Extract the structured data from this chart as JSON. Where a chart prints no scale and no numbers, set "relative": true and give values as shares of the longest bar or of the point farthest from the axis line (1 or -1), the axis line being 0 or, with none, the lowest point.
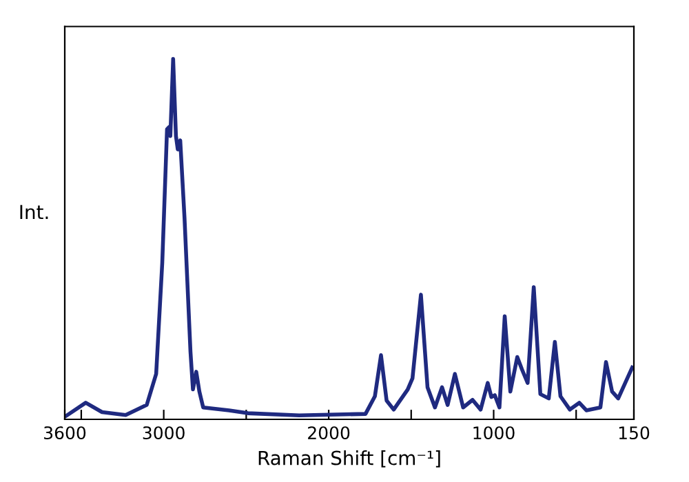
{
  "chart_data": {
    "type": "line",
    "relative": true,
    "xlabel": "Raman Shift [cm⁻¹]",
    "ylabel": "Int.",
    "xlim": [
      3600,
      150
    ],
    "xticks": [
      3600,
      {
        "value": 3500,
        "label": null
      },
      3000,
      {
        "value": 2500,
        "label": null
      },
      2000,
      {
        "value": 1500,
        "label": null
      },
      1000,
      {
        "value": 500,
        "label": null
      },
      150
    ],
    "grid": false,
    "marker": "none",
    "line_style": "solid",
    "series": [
      {
        "color": "#1f2a80",
        "x": [
          3590,
          3473,
          3374,
          3231,
          3103,
          3046,
          3009,
          2980,
          2968,
          2960,
          2943,
          2926,
          2915,
          2900,
          2874,
          2838,
          2823,
          2803,
          2784,
          2761,
          2604,
          2490,
          2179,
          1777,
          1720,
          1683,
          1649,
          1606,
          1521,
          1492,
          1441,
          1401,
          1356,
          1313,
          1279,
          1235,
          1185,
          1128,
          1079,
          1036,
          1014,
          993,
          965,
          933,
          899,
          857,
          828,
          794,
          757,
          717,
          666,
          629,
          595,
          538,
          481,
          438,
          353,
          319,
          282,
          245,
          160
        ],
        "values": [
          0.01,
          0.046,
          0.02,
          0.012,
          0.04,
          0.126,
          0.434,
          0.805,
          0.811,
          0.786,
          1.0,
          0.786,
          0.749,
          0.774,
          0.558,
          0.188,
          0.083,
          0.132,
          0.077,
          0.033,
          0.025,
          0.017,
          0.011,
          0.015,
          0.064,
          0.178,
          0.052,
          0.027,
          0.083,
          0.114,
          0.346,
          0.089,
          0.033,
          0.089,
          0.04,
          0.126,
          0.033,
          0.054,
          0.027,
          0.101,
          0.062,
          0.067,
          0.033,
          0.286,
          0.077,
          0.173,
          0.138,
          0.101,
          0.367,
          0.07,
          0.058,
          0.215,
          0.064,
          0.027,
          0.046,
          0.025,
          0.033,
          0.159,
          0.077,
          0.058,
          0.144
        ]
      }
    ]
  }
}
